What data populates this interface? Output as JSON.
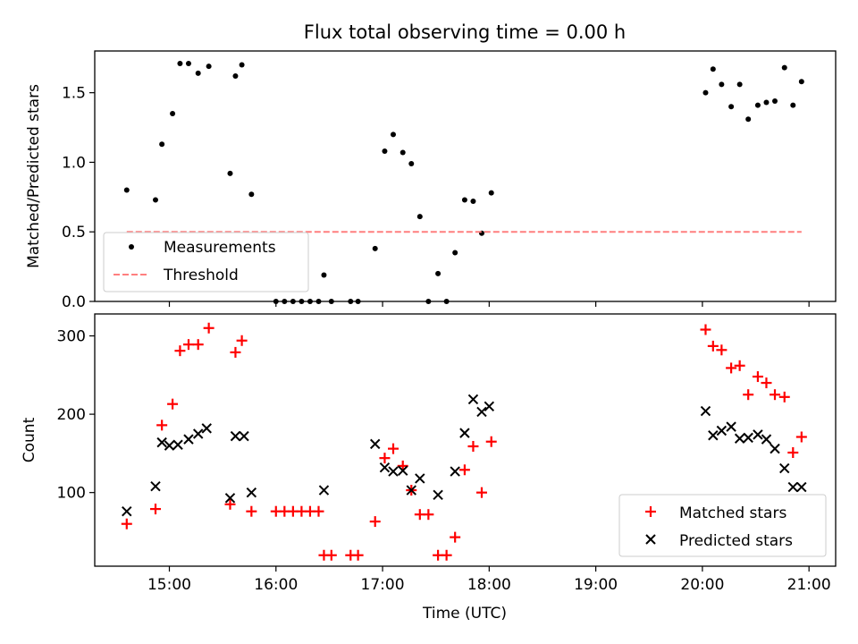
{
  "figure": {
    "title": "Flux total observing time = 0.00 h",
    "xlabel": "Time (UTC)",
    "x_tick_labels": [
      "15:00",
      "16:00",
      "17:00",
      "18:00",
      "19:00",
      "20:00",
      "21:00"
    ],
    "x_tick_hours": [
      15,
      16,
      17,
      18,
      19,
      20,
      21
    ],
    "xlim_hours": [
      14.3,
      21.25
    ]
  },
  "chart_data": [
    {
      "type": "scatter",
      "panel": "top",
      "ylabel": "Matched/Predicted stars",
      "ylim": [
        0,
        1.8
      ],
      "y_ticks": [
        0.0,
        0.5,
        1.0,
        1.5
      ],
      "y_tick_labels": [
        "0.0",
        "0.5",
        "1.0",
        "1.5"
      ],
      "legend_position": "lower-left",
      "series": [
        {
          "name": "Measurements",
          "style": "dot",
          "color": "#000000",
          "points": [
            [
              14.6,
              0.8
            ],
            [
              14.87,
              0.73
            ],
            [
              14.93,
              1.13
            ],
            [
              15.03,
              1.35
            ],
            [
              15.1,
              1.71
            ],
            [
              15.18,
              1.71
            ],
            [
              15.27,
              1.64
            ],
            [
              15.37,
              1.69
            ],
            [
              15.57,
              0.92
            ],
            [
              15.62,
              1.62
            ],
            [
              15.68,
              1.7
            ],
            [
              15.77,
              0.77
            ],
            [
              16.0,
              0.0
            ],
            [
              16.08,
              0.0
            ],
            [
              16.16,
              0.0
            ],
            [
              16.24,
              0.0
            ],
            [
              16.32,
              0.0
            ],
            [
              16.4,
              0.0
            ],
            [
              16.45,
              0.19
            ],
            [
              16.52,
              0.0
            ],
            [
              16.7,
              0.0
            ],
            [
              16.77,
              0.0
            ],
            [
              16.93,
              0.38
            ],
            [
              17.02,
              1.08
            ],
            [
              17.1,
              1.2
            ],
            [
              17.19,
              1.07
            ],
            [
              17.27,
              0.99
            ],
            [
              17.35,
              0.61
            ],
            [
              17.43,
              0.0
            ],
            [
              17.52,
              0.2
            ],
            [
              17.6,
              0.0
            ],
            [
              17.68,
              0.35
            ],
            [
              17.77,
              0.73
            ],
            [
              17.85,
              0.72
            ],
            [
              17.93,
              0.49
            ],
            [
              18.02,
              0.78
            ],
            [
              20.03,
              1.5
            ],
            [
              20.1,
              1.67
            ],
            [
              20.18,
              1.56
            ],
            [
              20.27,
              1.4
            ],
            [
              20.35,
              1.56
            ],
            [
              20.43,
              1.31
            ],
            [
              20.52,
              1.41
            ],
            [
              20.6,
              1.43
            ],
            [
              20.68,
              1.44
            ],
            [
              20.77,
              1.68
            ],
            [
              20.85,
              1.41
            ],
            [
              20.93,
              1.58
            ]
          ]
        },
        {
          "name": "Threshold",
          "style": "dashed-line",
          "color": "#ff7f7f",
          "points": [
            [
              14.6,
              0.5
            ],
            [
              20.93,
              0.5
            ]
          ]
        }
      ]
    },
    {
      "type": "scatter",
      "panel": "bottom",
      "ylabel": "Count",
      "ylim": [
        6,
        328
      ],
      "y_ticks": [
        100,
        200,
        300
      ],
      "y_tick_labels": [
        "100",
        "200",
        "300"
      ],
      "legend_position": "lower-right",
      "series": [
        {
          "name": "Matched stars",
          "style": "plus",
          "color": "#ff0000",
          "points": [
            [
              14.6,
              60
            ],
            [
              14.87,
              79
            ],
            [
              14.93,
              186
            ],
            [
              15.03,
              213
            ],
            [
              15.1,
              281
            ],
            [
              15.18,
              289
            ],
            [
              15.27,
              289
            ],
            [
              15.37,
              310
            ],
            [
              15.57,
              85
            ],
            [
              15.62,
              279
            ],
            [
              15.68,
              294
            ],
            [
              15.77,
              76
            ],
            [
              16.0,
              76
            ],
            [
              16.08,
              76
            ],
            [
              16.16,
              76
            ],
            [
              16.24,
              76
            ],
            [
              16.32,
              76
            ],
            [
              16.4,
              76
            ],
            [
              16.45,
              20
            ],
            [
              16.52,
              20
            ],
            [
              16.7,
              20
            ],
            [
              16.77,
              20
            ],
            [
              16.93,
              63
            ],
            [
              17.02,
              144
            ],
            [
              17.1,
              156
            ],
            [
              17.19,
              134
            ],
            [
              17.27,
              103
            ],
            [
              17.35,
              72
            ],
            [
              17.43,
              72
            ],
            [
              17.52,
              20
            ],
            [
              17.6,
              20
            ],
            [
              17.68,
              43
            ],
            [
              17.77,
              129
            ],
            [
              17.85,
              159
            ],
            [
              17.93,
              100
            ],
            [
              18.02,
              165
            ],
            [
              20.03,
              308
            ],
            [
              20.1,
              287
            ],
            [
              20.18,
              282
            ],
            [
              20.27,
              259
            ],
            [
              20.35,
              262
            ],
            [
              20.43,
              225
            ],
            [
              20.52,
              248
            ],
            [
              20.6,
              240
            ],
            [
              20.68,
              225
            ],
            [
              20.77,
              222
            ],
            [
              20.85,
              151
            ],
            [
              20.93,
              171
            ]
          ]
        },
        {
          "name": "Predicted stars",
          "style": "cross",
          "color": "#000000",
          "points": [
            [
              14.6,
              76
            ],
            [
              14.87,
              108
            ],
            [
              14.93,
              164
            ],
            [
              15.0,
              160
            ],
            [
              15.08,
              161
            ],
            [
              15.18,
              168
            ],
            [
              15.27,
              175
            ],
            [
              15.35,
              182
            ],
            [
              15.57,
              93
            ],
            [
              15.62,
              172
            ],
            [
              15.7,
              172
            ],
            [
              15.77,
              100
            ],
            [
              16.45,
              103
            ],
            [
              16.93,
              162
            ],
            [
              17.02,
              132
            ],
            [
              17.1,
              127
            ],
            [
              17.19,
              128
            ],
            [
              17.27,
              103
            ],
            [
              17.35,
              118
            ],
            [
              17.52,
              97
            ],
            [
              17.68,
              127
            ],
            [
              17.77,
              176
            ],
            [
              17.85,
              219
            ],
            [
              17.93,
              203
            ],
            [
              18.0,
              210
            ],
            [
              20.03,
              204
            ],
            [
              20.1,
              173
            ],
            [
              20.18,
              179
            ],
            [
              20.27,
              184
            ],
            [
              20.35,
              169
            ],
            [
              20.43,
              170
            ],
            [
              20.52,
              174
            ],
            [
              20.6,
              168
            ],
            [
              20.68,
              156
            ],
            [
              20.77,
              131
            ],
            [
              20.85,
              107
            ],
            [
              20.93,
              107
            ]
          ]
        }
      ]
    }
  ]
}
